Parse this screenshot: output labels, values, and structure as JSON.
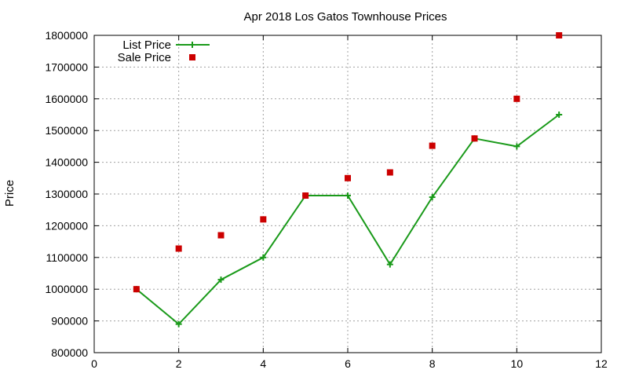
{
  "chart_data": {
    "type": "line",
    "title": "Apr 2018 Los Gatos Townhouse Prices",
    "xlabel": "",
    "ylabel": "Price",
    "xlim": [
      0,
      12
    ],
    "ylim": [
      800000,
      1800000
    ],
    "xticks": [
      0,
      2,
      4,
      6,
      8,
      10,
      12
    ],
    "yticks": [
      800000,
      900000,
      1000000,
      1100000,
      1200000,
      1300000,
      1400000,
      1500000,
      1600000,
      1700000,
      1800000
    ],
    "grid": true,
    "legend_position": "top-left",
    "series": [
      {
        "name": "List Price",
        "style": "line-with-plus-markers",
        "color": "#1a9a1a",
        "x": [
          1,
          2,
          3,
          4,
          5,
          6,
          7,
          8,
          9,
          10,
          11
        ],
        "y": [
          1000000,
          890000,
          1030000,
          1100000,
          1295000,
          1295000,
          1078000,
          1290000,
          1475000,
          1450000,
          1550000
        ]
      },
      {
        "name": "Sale Price",
        "style": "square-markers",
        "color": "#cc0000",
        "x": [
          1,
          2,
          3,
          4,
          5,
          6,
          7,
          8,
          9,
          10,
          11
        ],
        "y": [
          1000000,
          1128000,
          1170000,
          1220000,
          1295000,
          1350000,
          1368000,
          1452000,
          1475000,
          1600000,
          1800000
        ]
      }
    ]
  }
}
